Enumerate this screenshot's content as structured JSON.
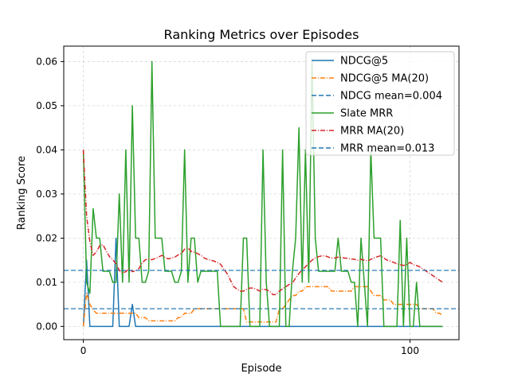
{
  "chart_data": {
    "type": "line",
    "title": "Ranking Metrics over Episodes",
    "xlabel": "Episode",
    "ylabel": "Ranking Score",
    "xlim": [
      -6,
      115
    ],
    "ylim": [
      -0.003,
      0.0635
    ],
    "x_ticks": [
      0,
      100
    ],
    "y_ticks": [
      0.0,
      0.01,
      0.02,
      0.03,
      0.04,
      0.05,
      0.06
    ],
    "y_tick_labels": [
      "0.00",
      "0.01",
      "0.02",
      "0.03",
      "0.04",
      "0.05",
      "0.06"
    ],
    "grid": true,
    "legend_position": "top-right",
    "colors": {
      "blue": "#1f77b4",
      "orange": "#ff7f0e",
      "green": "#2ca02c",
      "red": "#d62728"
    },
    "series": [
      {
        "name": "NDCG@5",
        "kind": "line",
        "color": "#1f77b4",
        "x_start": 0,
        "values": [
          0,
          0.015,
          0,
          0,
          0,
          0,
          0,
          0,
          0,
          0,
          0.02,
          0,
          0,
          0,
          0,
          0.005,
          0,
          0,
          0,
          0,
          0,
          0,
          0,
          0,
          0,
          0,
          0,
          0,
          0,
          0,
          0,
          0,
          0,
          0,
          0,
          0,
          0,
          0,
          0,
          0,
          0,
          0,
          0,
          0,
          0,
          0,
          0,
          0,
          0,
          0,
          0,
          0,
          0,
          0,
          0,
          0,
          0,
          0,
          0,
          0,
          0,
          0,
          0,
          0,
          0,
          0,
          0,
          0,
          0,
          0,
          0,
          0,
          0,
          0,
          0,
          0,
          0,
          0,
          0,
          0,
          0,
          0,
          0,
          0,
          0,
          0,
          0,
          0,
          0,
          0,
          0,
          0,
          0,
          0,
          0,
          0,
          0,
          0,
          0,
          0,
          0,
          0,
          0,
          0,
          0,
          0,
          0,
          0,
          0,
          0,
          0
        ]
      },
      {
        "name": "NDCG@5 MA(20)",
        "kind": "ma",
        "color": "#ff7f0e",
        "x_start": 0,
        "values": [
          0.0,
          0.0075,
          0.005,
          0.00375,
          0.003,
          0.003,
          0.003,
          0.003,
          0.003,
          0.003,
          0.003,
          0.003,
          0.003,
          0.003,
          0.003,
          0.003,
          0.003,
          0.002,
          0.002,
          0.002,
          0.00125,
          0.00125,
          0.00125,
          0.00125,
          0.00125,
          0.00125,
          0.00125,
          0.00125,
          0.00125,
          0.002,
          0.002,
          0.003,
          0.003,
          0.003,
          0.004,
          0.004,
          0.004,
          0.004,
          0.004,
          0.004,
          0.004,
          0.004,
          0.004,
          0.004,
          0.004,
          0.004,
          0.004,
          0.004,
          0.004,
          0.004,
          0.001,
          0.001,
          0.001,
          0.001,
          0.001,
          0.001,
          0.001,
          0.001,
          0.001,
          0.001,
          0.004,
          0.004,
          0.005,
          0.006,
          0.007,
          0.007,
          0.008,
          0.008,
          0.009,
          0.009,
          0.009,
          0.009,
          0.009,
          0.009,
          0.009,
          0.009,
          0.008,
          0.008,
          0.008,
          0.008,
          0.008,
          0.008,
          0.008,
          0.009,
          0.009,
          0.009,
          0.009,
          0.009,
          0.008,
          0.007,
          0.007,
          0.007,
          0.006,
          0.006,
          0.006,
          0.005,
          0.005,
          0.005,
          0.005,
          0.005,
          0.005,
          0.005,
          0.005,
          0.004,
          0.004,
          0.004,
          0.004,
          0.004,
          0.003,
          0.003,
          0.0025
        ]
      },
      {
        "name": "NDCG mean=0.004",
        "kind": "hline",
        "color": "#1f77b4",
        "y": 0.004
      },
      {
        "name": "Slate MRR",
        "kind": "line",
        "color": "#2ca02c",
        "x_start": 0,
        "values": [
          0.04,
          0.01,
          0.0075,
          0.0267,
          0.02,
          0.02,
          0.0125,
          0.0125,
          0.0125,
          0.01,
          0.01,
          0.03,
          0.01,
          0.04,
          0.01,
          0.05,
          0.02,
          0.02,
          0.01,
          0.01,
          0.0125,
          0.06,
          0.02,
          0.02,
          0.02,
          0.0125,
          0.0125,
          0.0125,
          0.01,
          0.01,
          0.0125,
          0.04,
          0.01,
          0.02,
          0.02,
          0.01,
          0.0125,
          0.0125,
          0.0125,
          0.0125,
          0.0125,
          0.0125,
          0.0,
          0.0,
          0.0,
          0.0,
          0.0,
          0.0,
          0.0,
          0.02,
          0.02,
          0.0,
          0.0,
          0.0,
          0.0,
          0.04,
          0.01,
          0.0,
          0.0,
          0.0,
          0.0,
          0.04,
          0.0,
          0.0,
          0.0125,
          0.02,
          0.045,
          0.01,
          0.04,
          0.01,
          0.06,
          0.02,
          0.0125,
          0.0125,
          0.0125,
          0.0125,
          0.0125,
          0.0125,
          0.02,
          0.0125,
          0.0125,
          0.0125,
          0.01,
          0.01,
          0.0,
          0.02,
          0.01,
          0.0,
          0.04,
          0.02,
          0.02,
          0.02,
          0.0,
          0.0,
          0.0,
          0.0,
          0.0,
          0.024,
          0.0,
          0.02,
          0.0,
          0.0,
          0.01,
          0.0,
          0.0,
          0.0,
          0.0,
          0.0,
          0.0,
          0.0,
          0.0
        ]
      },
      {
        "name": "MRR MA(20)",
        "kind": "ma",
        "color": "#d62728",
        "x_start": 0,
        "values": [
          0.04,
          0.025,
          0.0192,
          0.0161,
          0.0169,
          0.0183,
          0.0185,
          0.0171,
          0.0158,
          0.0151,
          0.0142,
          0.0127,
          0.0121,
          0.0124,
          0.0131,
          0.0124,
          0.0126,
          0.0131,
          0.0144,
          0.0151,
          0.0153,
          0.0151,
          0.0154,
          0.0157,
          0.0161,
          0.0156,
          0.0153,
          0.0155,
          0.0157,
          0.0162,
          0.0165,
          0.0175,
          0.0178,
          0.017,
          0.0168,
          0.0165,
          0.0161,
          0.0155,
          0.0152,
          0.015,
          0.0148,
          0.0145,
          0.0141,
          0.013,
          0.012,
          0.0105,
          0.009,
          0.0085,
          0.008,
          0.008,
          0.0084,
          0.0087,
          0.0087,
          0.0084,
          0.008,
          0.0085,
          0.0083,
          0.008,
          0.0072,
          0.0072,
          0.008,
          0.0085,
          0.009,
          0.0095,
          0.0098,
          0.011,
          0.012,
          0.0128,
          0.0135,
          0.0143,
          0.015,
          0.0155,
          0.0158,
          0.016,
          0.016,
          0.0157,
          0.0155,
          0.0155,
          0.0157,
          0.0156,
          0.0155,
          0.0154,
          0.0153,
          0.0152,
          0.015,
          0.0152,
          0.015,
          0.0148,
          0.0152,
          0.0155,
          0.0158,
          0.016,
          0.0155,
          0.015,
          0.0148,
          0.0145,
          0.0142,
          0.014,
          0.0138,
          0.014,
          0.0145,
          0.014,
          0.0138,
          0.0135,
          0.013,
          0.0125,
          0.012,
          0.0115,
          0.011,
          0.0105,
          0.01
        ]
      },
      {
        "name": "MRR mean=0.013",
        "kind": "hline",
        "color": "#1f77b4",
        "y": 0.0127
      }
    ]
  }
}
